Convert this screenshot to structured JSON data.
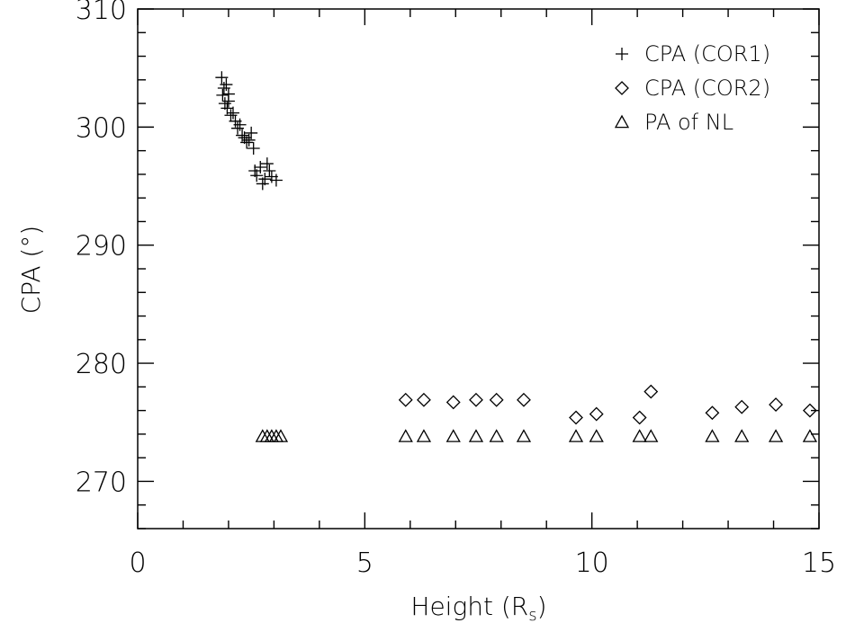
{
  "chart_data": {
    "type": "scatter",
    "title": "",
    "xlabel": "Height (R",
    "xlabel_sub": "s",
    "xlabel_close": ")",
    "ylabel": "CPA (°)",
    "xlim": [
      0,
      15
    ],
    "ylim": [
      266,
      310
    ],
    "xticks": [
      0,
      5,
      10,
      15
    ],
    "xtick_labels": [
      "0",
      "5",
      "10",
      "15"
    ],
    "yticks": [
      270,
      280,
      290,
      300,
      310
    ],
    "ytick_labels": [
      "270",
      "280",
      "290",
      "300",
      "310"
    ],
    "grid": false,
    "legend_position": "top-right",
    "series": [
      {
        "name": "CPA (COR1)",
        "marker": "plus",
        "points": [
          [
            1.85,
            304.2
          ],
          [
            1.9,
            303.3
          ],
          [
            1.87,
            302.7
          ],
          [
            1.95,
            303.6
          ],
          [
            2.0,
            302.2
          ],
          [
            1.97,
            301.6
          ],
          [
            2.05,
            301.0
          ],
          [
            2.1,
            301.2
          ],
          [
            2.15,
            300.5
          ],
          [
            2.2,
            299.9
          ],
          [
            2.25,
            300.2
          ],
          [
            2.3,
            299.3
          ],
          [
            2.35,
            299.1
          ],
          [
            2.4,
            298.7
          ],
          [
            2.45,
            298.9
          ],
          [
            2.5,
            299.5
          ],
          [
            2.55,
            298.2
          ],
          [
            2.58,
            296.3
          ],
          [
            2.62,
            295.9
          ],
          [
            2.7,
            296.6
          ],
          [
            2.75,
            295.2
          ],
          [
            2.8,
            295.6
          ],
          [
            2.85,
            296.9
          ],
          [
            2.9,
            296.3
          ],
          [
            2.95,
            295.8
          ],
          [
            3.05,
            295.5
          ],
          [
            2.0,
            302.8
          ],
          [
            1.92,
            302.0
          ]
        ]
      },
      {
        "name": "CPA (COR2)",
        "marker": "diamond",
        "points": [
          [
            5.9,
            276.9
          ],
          [
            6.3,
            276.9
          ],
          [
            6.95,
            276.7
          ],
          [
            7.45,
            276.9
          ],
          [
            7.9,
            276.9
          ],
          [
            8.5,
            276.9
          ],
          [
            9.65,
            275.4
          ],
          [
            10.1,
            275.7
          ],
          [
            11.05,
            275.4
          ],
          [
            11.3,
            277.6
          ],
          [
            12.65,
            275.8
          ],
          [
            13.3,
            276.3
          ],
          [
            14.05,
            276.5
          ],
          [
            14.8,
            276.0
          ]
        ]
      },
      {
        "name": "PA of NL",
        "marker": "triangle",
        "points": [
          [
            2.75,
            273.8
          ],
          [
            2.85,
            273.8
          ],
          [
            2.95,
            273.8
          ],
          [
            3.05,
            273.8
          ],
          [
            3.15,
            273.8
          ],
          [
            5.9,
            273.8
          ],
          [
            6.3,
            273.8
          ],
          [
            6.95,
            273.8
          ],
          [
            7.45,
            273.8
          ],
          [
            7.9,
            273.8
          ],
          [
            8.5,
            273.8
          ],
          [
            9.65,
            273.8
          ],
          [
            10.1,
            273.8
          ],
          [
            11.05,
            273.8
          ],
          [
            11.3,
            273.8
          ],
          [
            12.65,
            273.8
          ],
          [
            13.3,
            273.8
          ],
          [
            14.05,
            273.8
          ],
          [
            14.8,
            273.8
          ]
        ]
      }
    ]
  }
}
